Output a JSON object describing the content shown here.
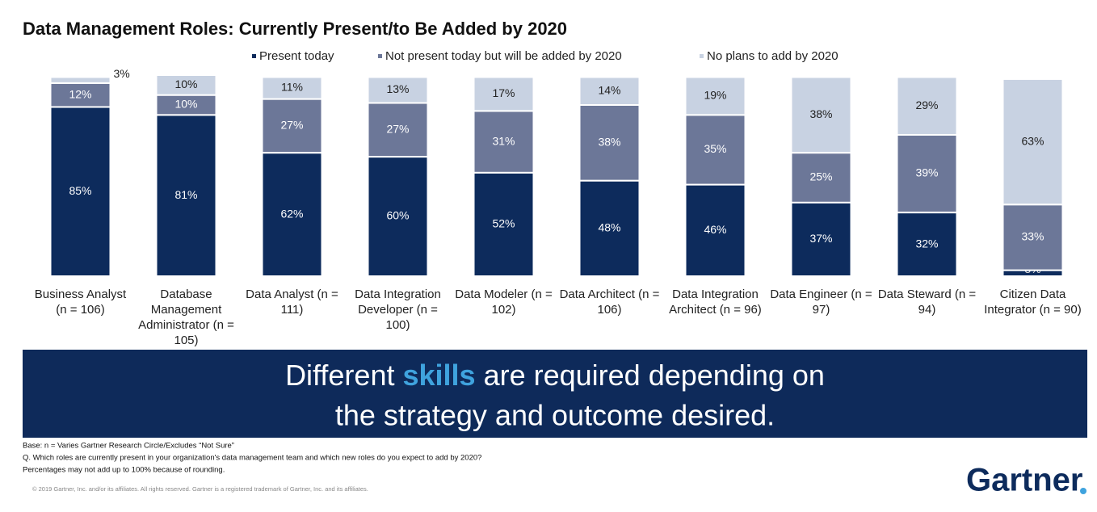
{
  "chart_data": {
    "type": "stacked_bar",
    "title": "Data Management Roles: Currently Present/to Be Added by 2020",
    "categories": [
      "Business Analyst (n = 106)",
      "Database Management Administrator (n = 105)",
      "Data Analyst (n = 111)",
      "Data Integration Developer (n = 100)",
      "Data Modeler (n = 102)",
      "Data Architect (n = 106)",
      "Data Integration Architect (n = 96)",
      "Data Engineer (n = 97)",
      "Data Steward (n = 94)",
      "Citizen Data Integrator (n = 90)"
    ],
    "series": [
      {
        "name": "Present today",
        "color": "#0d2b5c",
        "values": [
          85,
          81,
          62,
          60,
          52,
          48,
          46,
          37,
          32,
          3
        ],
        "value_labels": [
          "85%",
          "81%",
          "62%",
          "60%",
          "52%",
          "48%",
          "46%",
          "37%",
          "32%",
          "3%"
        ]
      },
      {
        "name": "Not present today but will be added by 2020",
        "color": "#6c7798",
        "values": [
          12,
          10,
          27,
          27,
          31,
          38,
          35,
          25,
          39,
          33
        ],
        "value_labels": [
          "12%",
          "10%",
          "27%",
          "27%",
          "31%",
          "38%",
          "35%",
          "25%",
          "39%",
          "33%"
        ]
      },
      {
        "name": "No plans to add by 2020",
        "color": "#c8d2e2",
        "values": [
          3,
          10,
          11,
          13,
          17,
          14,
          19,
          38,
          29,
          63
        ],
        "value_labels": [
          "3%",
          "10%",
          "11%",
          "13%",
          "17%",
          "14%",
          "19%",
          "38%",
          "29%",
          "63%"
        ]
      }
    ]
  },
  "banner": {
    "text_1": "Different",
    "highlight": "skills",
    "text_2": "are required depending on",
    "text_3": "the strategy and outcome desired."
  },
  "footnotes": [
    "Base: n = Varies Gartner Research Circle/Excludes “Not Sure”",
    "Q. Which roles are currently present in your organization's data management team and which new roles do you expect to add by 2020?",
    "Percentages may not add up to 100% because of rounding."
  ],
  "copyright": "© 2019 Gartner, Inc. and/or its affiliates. All rights reserved. Gartner is a registered trademark of Gartner, Inc. and its affiliates.",
  "logo": "Gartner"
}
